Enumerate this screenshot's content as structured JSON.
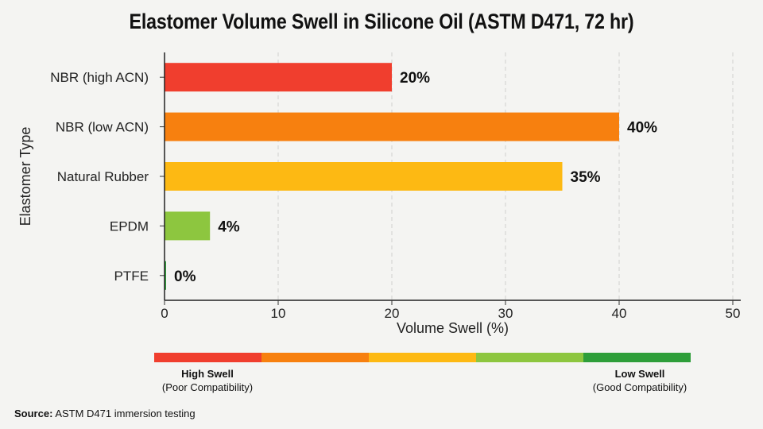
{
  "chart_data": {
    "type": "bar",
    "orientation": "horizontal",
    "title": "Elastomer Volume Swell in Silicone Oil (ASTM D471, 72 hr)",
    "xlabel": "Volume Swell (%)",
    "ylabel": "Elastomer Type",
    "xlim": [
      0,
      50
    ],
    "xticks": [
      0,
      10,
      20,
      30,
      40,
      50
    ],
    "grid": "vertical-dashed",
    "categories": [
      "NBR (high ACN)",
      "NBR (low ACN)",
      "Natural Rubber",
      "EPDM",
      "PTFE"
    ],
    "values": [
      20,
      40,
      35,
      4,
      0
    ],
    "data_labels": [
      "20%",
      "40%",
      "35%",
      "4%",
      "0%"
    ],
    "bar_colors": [
      "#f03e2e",
      "#f7800f",
      "#fdb913",
      "#8dc63f",
      "#2e9e3a"
    ]
  },
  "legend": {
    "colors": [
      "#f03e2e",
      "#f7800f",
      "#fdb913",
      "#8dc63f",
      "#2e9e3a"
    ],
    "left_title": "High Swell",
    "left_sub": "(Poor Compatibility)",
    "right_title": "Low Swell",
    "right_sub": "(Good Compatibility)"
  },
  "source": {
    "label": "Source:",
    "text": "ASTM D471 immersion testing"
  }
}
